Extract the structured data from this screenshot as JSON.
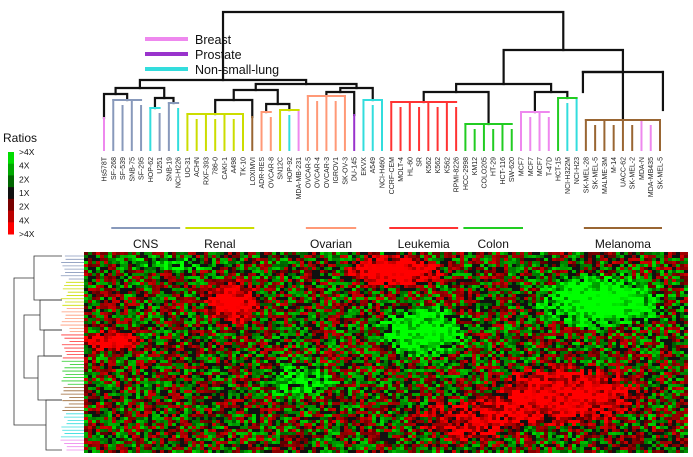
{
  "legend": [
    {
      "label": "Breast",
      "color": "#ee88ee"
    },
    {
      "label": "Prostate",
      "color": "#9933cc"
    },
    {
      "label": "Non-small-lung",
      "color": "#33dddd"
    }
  ],
  "ratios": {
    "title": "Ratios",
    "ticks": [
      ">4X",
      "4X",
      "2X",
      "1X",
      "2X",
      "4X",
      ">4X"
    ],
    "colors": [
      "#00dd00",
      "#00a800",
      "#006600",
      "#111111",
      "#770000",
      "#bb0000",
      "#ff0000"
    ]
  },
  "groups": [
    {
      "label": "CNS",
      "color": "#8899bb"
    },
    {
      "label": "Renal",
      "color": "#ccdd00"
    },
    {
      "label": "Ovarian",
      "color": "#ff9977"
    },
    {
      "label": "Leukemia",
      "color": "#ff3333"
    },
    {
      "label": "Colon",
      "color": "#22cc22"
    },
    {
      "label": "Melanoma",
      "color": "#996633"
    }
  ],
  "cell_lines": [
    {
      "name": "Hs578T",
      "color": "#ee88ee"
    },
    {
      "name": "SF-268",
      "color": "#8899bb"
    },
    {
      "name": "SF-539",
      "color": "#8899bb"
    },
    {
      "name": "SNB-75",
      "color": "#8899bb"
    },
    {
      "name": "SF-295",
      "color": "#8899bb"
    },
    {
      "name": "HOP-62",
      "color": "#33dddd"
    },
    {
      "name": "U251",
      "color": "#8899bb"
    },
    {
      "name": "SNB-19",
      "color": "#8899bb"
    },
    {
      "name": "NCI-H226",
      "color": "#33dddd"
    },
    {
      "name": "UO-31",
      "color": "#ccdd00"
    },
    {
      "name": "ACHN",
      "color": "#ccdd00"
    },
    {
      "name": "RXF-393",
      "color": "#ccdd00"
    },
    {
      "name": "786-0",
      "color": "#ccdd00"
    },
    {
      "name": "CAKI-1",
      "color": "#ccdd00"
    },
    {
      "name": "A498",
      "color": "#ccdd00"
    },
    {
      "name": "TK-10",
      "color": "#ccdd00"
    },
    {
      "name": "LOXIMVI",
      "color": "#996633"
    },
    {
      "name": "ADR-RES",
      "color": "#ff9977"
    },
    {
      "name": "OVCAR-8",
      "color": "#ff9977"
    },
    {
      "name": "SN12C",
      "color": "#ccdd00"
    },
    {
      "name": "HOP-92",
      "color": "#33dddd"
    },
    {
      "name": "MDA-MB-231",
      "color": "#ee88ee"
    },
    {
      "name": "OVCAR-5",
      "color": "#ff9977"
    },
    {
      "name": "OVCAR-4",
      "color": "#ff9977"
    },
    {
      "name": "OVCAR-3",
      "color": "#ff9977"
    },
    {
      "name": "IGROV1",
      "color": "#ff9977"
    },
    {
      "name": "SK-OV-3",
      "color": "#ff9977"
    },
    {
      "name": "DU-145",
      "color": "#9933cc"
    },
    {
      "name": "EKVX",
      "color": "#33dddd"
    },
    {
      "name": "A549",
      "color": "#33dddd"
    },
    {
      "name": "NCI-H460",
      "color": "#33dddd"
    },
    {
      "name": "CCRF-CEM",
      "color": "#ff3333"
    },
    {
      "name": "MOLT-4",
      "color": "#ff3333"
    },
    {
      "name": "HL-60",
      "color": "#ff3333"
    },
    {
      "name": "SR",
      "color": "#ff3333"
    },
    {
      "name": "K562",
      "color": "#ff3333"
    },
    {
      "name": "K562",
      "color": "#ff3333"
    },
    {
      "name": "K562",
      "color": "#ff3333"
    },
    {
      "name": "RPMI-8226",
      "color": "#ff3333"
    },
    {
      "name": "HCC-2998",
      "color": "#22cc22"
    },
    {
      "name": "KM12",
      "color": "#22cc22"
    },
    {
      "name": "COLO205",
      "color": "#22cc22"
    },
    {
      "name": "HT-29",
      "color": "#22cc22"
    },
    {
      "name": "HCT-116",
      "color": "#22cc22"
    },
    {
      "name": "SW-620",
      "color": "#22cc22"
    },
    {
      "name": "MCF7",
      "color": "#ee88ee"
    },
    {
      "name": "MCF7",
      "color": "#ee88ee"
    },
    {
      "name": "MCF7",
      "color": "#ee88ee"
    },
    {
      "name": "T-47D",
      "color": "#ee88ee"
    },
    {
      "name": "HCT-15",
      "color": "#22cc22"
    },
    {
      "name": "NCI-H322M",
      "color": "#33dddd"
    },
    {
      "name": "NCI-H23",
      "color": "#33dddd"
    },
    {
      "name": "SK-MEL-28",
      "color": "#996633"
    },
    {
      "name": "SK-MEL-5",
      "color": "#996633"
    },
    {
      "name": "MALME-3M",
      "color": "#996633"
    },
    {
      "name": "M-14",
      "color": "#996633"
    },
    {
      "name": "UACC-62",
      "color": "#996633"
    },
    {
      "name": "SK-MEL-2",
      "color": "#996633"
    },
    {
      "name": "MDA-N",
      "color": "#ee88ee"
    },
    {
      "name": "MDA-MB435",
      "color": "#ee88ee"
    },
    {
      "name": "SK-MEL-5",
      "color": "#996633"
    }
  ]
}
